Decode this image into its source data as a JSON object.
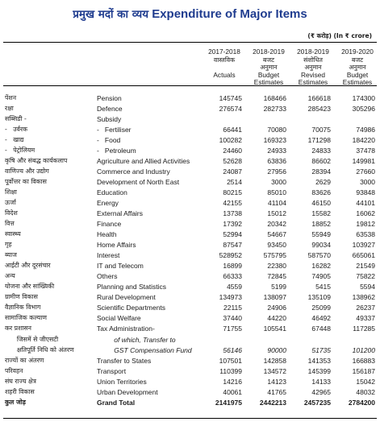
{
  "title": {
    "hindi": "प्रमुख मदों का व्यय",
    "english": "Expenditure of Major Items"
  },
  "unit": "(₹ करोड़) (In ₹ crore)",
  "columns": [
    {
      "year": "2017-2018",
      "lines": [
        "वास्तविक",
        "",
        "Actuals"
      ]
    },
    {
      "year": "2018-2019",
      "lines": [
        "बजट",
        "अनुमान",
        "Budget",
        "Estimates"
      ]
    },
    {
      "year": "2018-2019",
      "lines": [
        "संशोधित",
        "अनुमान",
        "Revised",
        "Estimates"
      ]
    },
    {
      "year": "2019-2020",
      "lines": [
        "बजट",
        "अनुमान",
        "Budget",
        "Estimates"
      ]
    }
  ],
  "rows": [
    {
      "hi": "पेंशन",
      "en": "Pension",
      "v": [
        "145745",
        "168466",
        "166618",
        "174300"
      ]
    },
    {
      "hi": "रक्षा",
      "en": "Defence",
      "v": [
        "276574",
        "282733",
        "285423",
        "305296"
      ]
    },
    {
      "hi": "सब्सिडी -",
      "en": "Subsidy",
      "v": [
        "",
        "",
        "",
        ""
      ]
    },
    {
      "hi": "-   उर्वरक",
      "en": "-   Fertiliser",
      "v": [
        "66441",
        "70080",
        "70075",
        "74986"
      ]
    },
    {
      "hi": "-   खाद्य",
      "en": "-   Food",
      "v": [
        "100282",
        "169323",
        "171298",
        "184220"
      ]
    },
    {
      "hi": "-   पेट्रोलियम",
      "en": "-   Petroleum",
      "v": [
        "24460",
        "24933",
        "24833",
        "37478"
      ]
    },
    {
      "hi": "कृषि और संबद्ध कार्यकलाप",
      "en": "Agriculture and Allied Activities",
      "v": [
        "52628",
        "63836",
        "86602",
        "149981"
      ]
    },
    {
      "hi": "वाणिज्य और उद्योग",
      "en": "Commerce and Industry",
      "v": [
        "24087",
        "27956",
        "28394",
        "27660"
      ]
    },
    {
      "hi": "पूर्वोत्तर का विकास",
      "en": "Development of North East",
      "v": [
        "2514",
        "3000",
        "2629",
        "3000"
      ]
    },
    {
      "hi": "शिक्षा",
      "en": "Education",
      "v": [
        "80215",
        "85010",
        "83626",
        "93848"
      ]
    },
    {
      "hi": "ऊर्जा",
      "en": "Energy",
      "v": [
        "42155",
        "41104",
        "46150",
        "44101"
      ]
    },
    {
      "hi": "विदेश",
      "en": "External Affairs",
      "v": [
        "13738",
        "15012",
        "15582",
        "16062"
      ]
    },
    {
      "hi": "वित्त",
      "en": "Finance",
      "v": [
        "17392",
        "20342",
        "18852",
        "19812"
      ]
    },
    {
      "hi": "स्वास्थ्य",
      "en": "Health",
      "v": [
        "52994",
        "54667",
        "55949",
        "63538"
      ]
    },
    {
      "hi": "गृह",
      "en": "Home Affairs",
      "v": [
        "87547",
        "93450",
        "99034",
        "103927"
      ]
    },
    {
      "hi": "ब्याज",
      "en": "Interest",
      "v": [
        "528952",
        "575795",
        "587570",
        "665061"
      ]
    },
    {
      "hi": "आईटी और दूरसंचार",
      "en": "IT and Telecom",
      "v": [
        "16899",
        "22380",
        "16282",
        "21549"
      ]
    },
    {
      "hi": "अन्य",
      "en": "Others",
      "v": [
        "66333",
        "72845",
        "74905",
        "75822"
      ]
    },
    {
      "hi": "योजना और सांख्यिकी",
      "en": "Planning and Statistics",
      "v": [
        "4559",
        "5199",
        "5415",
        "5594"
      ]
    },
    {
      "hi": "ग्रामीण विकास",
      "en": "Rural Development",
      "v": [
        "134973",
        "138097",
        "135109",
        "138962"
      ]
    },
    {
      "hi": "वैज्ञानिक विभाग",
      "en": "Scientific Departments",
      "v": [
        "22115",
        "24906",
        "25099",
        "26237"
      ]
    },
    {
      "hi": "सामाजिक कल्याण",
      "en": "Social Welfare",
      "v": [
        "37440",
        "44220",
        "46492",
        "49337"
      ]
    },
    {
      "hi": "कर प्रशासन",
      "en": "Tax Administration-",
      "v": [
        "71755",
        "105541",
        "67448",
        "117285"
      ]
    },
    {
      "hi": "      जिसमें से जीएसटी",
      "en": "         of which, Transfer to",
      "v": [
        "",
        "",
        "",
        ""
      ],
      "style": "italic"
    },
    {
      "hi": "      क्षतिपूर्ति निधि को अंतरण",
      "en": "         GST Compensation Fund",
      "v": [
        "56146",
        "90000",
        "51735",
        "101200"
      ],
      "style": "italic"
    },
    {
      "hi": "राज्यों का अंतरण",
      "en": "Transfer to States",
      "v": [
        "107501",
        "142858",
        "141353",
        "166883"
      ]
    },
    {
      "hi": "परिवहन",
      "en": "Transport",
      "v": [
        "110399",
        "134572",
        "145399",
        "156187"
      ]
    },
    {
      "hi": "संघ राज्य क्षेत्र",
      "en": "Union Territories",
      "v": [
        "14216",
        "14123",
        "14133",
        "15042"
      ]
    },
    {
      "hi": "शहरी विकास",
      "en": "Urban Development",
      "v": [
        "40061",
        "41765",
        "42965",
        "48032"
      ]
    },
    {
      "hi": "कुल जोड़",
      "en": "Grand Total",
      "v": [
        "2141975",
        "2442213",
        "2457235",
        "2784200"
      ],
      "style": "bold"
    }
  ]
}
